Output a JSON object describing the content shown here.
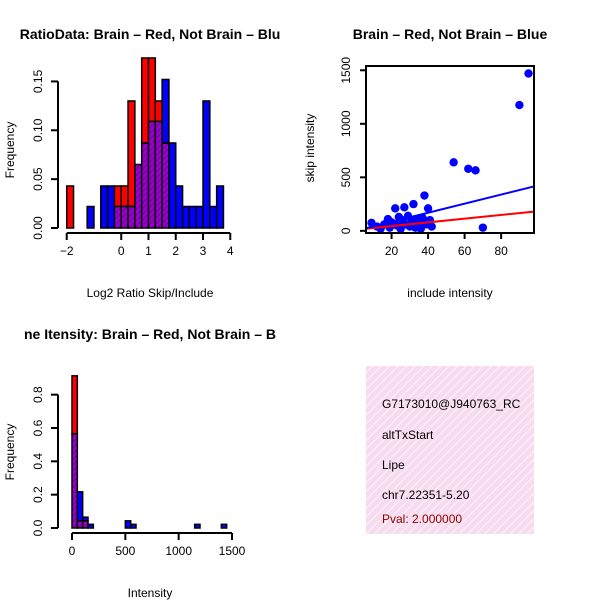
{
  "colors": {
    "brain": "#ff0000",
    "not_brain": "#0000ff",
    "overlap": "#9900cc",
    "info_bg": "#f7dcef",
    "pval": "#8b0000"
  },
  "chart_data": [
    {
      "type": "bar",
      "subtype": "histogram",
      "title": "RatioData: Brain – Red, Not Brain – Blu",
      "xlabel": "Log2 Ratio Skip/Include",
      "ylabel": "Frequency",
      "xlim": [
        -2.1,
        4.1
      ],
      "ylim": [
        0,
        0.175
      ],
      "xticks": [
        -2,
        0,
        1,
        2,
        3,
        4
      ],
      "xtick_labels": [
        "−2",
        "0",
        "1",
        "2",
        "3",
        "4"
      ],
      "yticks": [
        0,
        0.05,
        0.1,
        0.15
      ],
      "ytick_labels": [
        "0.00",
        "0.05",
        "0.10",
        "0.15"
      ],
      "series": [
        {
          "name": "Brain",
          "bins": [
            [
              -2.0,
              -1.75
            ],
            [
              -1.25,
              -1.0
            ],
            [
              -0.75,
              -0.5
            ],
            [
              -0.5,
              -0.25
            ],
            [
              -0.25,
              0
            ],
            [
              0,
              0.25
            ],
            [
              0.25,
              0.5
            ],
            [
              0.5,
              0.75
            ],
            [
              0.75,
              1.0
            ],
            [
              1.0,
              1.25
            ],
            [
              1.25,
              1.5
            ],
            [
              1.5,
              1.75
            ],
            [
              1.75,
              2.0
            ],
            [
              2.0,
              2.25
            ],
            [
              2.25,
              2.5
            ],
            [
              2.5,
              2.75
            ],
            [
              2.75,
              3.0
            ],
            [
              3.0,
              3.25
            ],
            [
              3.25,
              3.5
            ],
            [
              3.5,
              3.75
            ],
            [
              3.75,
              4.0
            ]
          ],
          "values": [
            0.043,
            0,
            0,
            0,
            0.043,
            0.043,
            0.13,
            0.065,
            0.174,
            0.174,
            0.13,
            0.087,
            0,
            0,
            0,
            0,
            0,
            0,
            0,
            0,
            0
          ]
        },
        {
          "name": "Not Brain",
          "bins": [
            [
              -2.0,
              -1.75
            ],
            [
              -1.25,
              -1.0
            ],
            [
              -0.75,
              -0.5
            ],
            [
              -0.5,
              -0.25
            ],
            [
              -0.25,
              0
            ],
            [
              0,
              0.25
            ],
            [
              0.25,
              0.5
            ],
            [
              0.5,
              0.75
            ],
            [
              0.75,
              1.0
            ],
            [
              1.0,
              1.25
            ],
            [
              1.25,
              1.5
            ],
            [
              1.5,
              1.75
            ],
            [
              1.75,
              2.0
            ],
            [
              2.0,
              2.25
            ],
            [
              2.25,
              2.5
            ],
            [
              2.5,
              2.75
            ],
            [
              2.75,
              3.0
            ],
            [
              3.0,
              3.25
            ],
            [
              3.25,
              3.5
            ],
            [
              3.5,
              3.75
            ],
            [
              3.75,
              4.0
            ]
          ],
          "values": [
            0,
            0.022,
            0.043,
            0.043,
            0.022,
            0.022,
            0.022,
            0.065,
            0.087,
            0.109,
            0.109,
            0.152,
            0.087,
            0.043,
            0.022,
            0.022,
            0.022,
            0.13,
            0.022,
            0.043,
            0
          ]
        }
      ]
    },
    {
      "type": "scatter",
      "title": "Brain – Red, Not Brain – Blue",
      "xlabel": "include intensity",
      "ylabel": "skip intensity",
      "xlim": [
        6,
        98
      ],
      "ylim": [
        -20,
        1540
      ],
      "xticks": [
        20,
        40,
        60,
        80
      ],
      "xtick_labels": [
        "20",
        "40",
        "60",
        "80"
      ],
      "yticks": [
        0,
        500,
        1000,
        1500
      ],
      "ytick_labels": [
        "0",
        "500",
        "1000",
        "1500"
      ],
      "points": [
        {
          "x": 9,
          "y": 75
        },
        {
          "x": 12,
          "y": 40
        },
        {
          "x": 14,
          "y": 20
        },
        {
          "x": 16,
          "y": 60
        },
        {
          "x": 18,
          "y": 110
        },
        {
          "x": 19,
          "y": 30
        },
        {
          "x": 20,
          "y": 80
        },
        {
          "x": 22,
          "y": 210
        },
        {
          "x": 23,
          "y": 50
        },
        {
          "x": 24,
          "y": 130
        },
        {
          "x": 25,
          "y": 20
        },
        {
          "x": 26,
          "y": 100
        },
        {
          "x": 27,
          "y": 220
        },
        {
          "x": 28,
          "y": 60
        },
        {
          "x": 29,
          "y": 140
        },
        {
          "x": 30,
          "y": 40
        },
        {
          "x": 31,
          "y": 90
        },
        {
          "x": 32,
          "y": 250
        },
        {
          "x": 33,
          "y": 30
        },
        {
          "x": 34,
          "y": 110
        },
        {
          "x": 35,
          "y": 70
        },
        {
          "x": 36,
          "y": 20
        },
        {
          "x": 37,
          "y": 120
        },
        {
          "x": 38,
          "y": 330
        },
        {
          "x": 39,
          "y": 60
        },
        {
          "x": 40,
          "y": 210
        },
        {
          "x": 41,
          "y": 100
        },
        {
          "x": 42,
          "y": 40
        },
        {
          "x": 54,
          "y": 640
        },
        {
          "x": 62,
          "y": 580
        },
        {
          "x": 66,
          "y": 565
        },
        {
          "x": 70,
          "y": 30
        },
        {
          "x": 90,
          "y": 1175
        },
        {
          "x": 95,
          "y": 1470
        }
      ],
      "fit_lines": [
        {
          "name": "Brain",
          "x": [
            6,
            98
          ],
          "y": [
            20,
            180
          ]
        },
        {
          "name": "Not Brain",
          "x": [
            6,
            98
          ],
          "y": [
            25,
            415
          ]
        }
      ]
    },
    {
      "type": "bar",
      "subtype": "histogram",
      "title": "ne Itensity: Brain – Red, Not Brain – B",
      "xlabel": "Intensity",
      "ylabel": "Frequency",
      "xlim": [
        -60,
        1560
      ],
      "ylim": [
        0,
        0.96
      ],
      "xticks": [
        0,
        500,
        1000,
        1500
      ],
      "xtick_labels": [
        "0",
        "500",
        "1000",
        "1500"
      ],
      "yticks": [
        0,
        0.2,
        0.4,
        0.6,
        0.8
      ],
      "ytick_labels": [
        "0.0",
        "0.2",
        "0.4",
        "0.6",
        "0.8"
      ],
      "bin_edges": [
        0,
        50,
        100,
        150,
        200,
        250,
        300,
        350,
        400,
        450,
        500,
        550,
        600,
        650,
        700,
        750,
        800,
        850,
        900,
        950,
        1000,
        1050,
        1100,
        1150,
        1200,
        1250,
        1300,
        1350,
        1400,
        1450,
        1500
      ],
      "series": [
        {
          "name": "Brain",
          "values": [
            0.913,
            0.043,
            0.043,
            0,
            0,
            0,
            0,
            0,
            0,
            0,
            0,
            0,
            0,
            0,
            0,
            0,
            0,
            0,
            0,
            0,
            0,
            0,
            0,
            0,
            0,
            0,
            0,
            0,
            0,
            0
          ]
        },
        {
          "name": "Not Brain",
          "values": [
            0.565,
            0.217,
            0.065,
            0.022,
            0,
            0,
            0,
            0,
            0,
            0,
            0.043,
            0.022,
            0,
            0,
            0,
            0,
            0,
            0,
            0,
            0,
            0,
            0,
            0,
            0.022,
            0,
            0,
            0,
            0,
            0.022,
            0
          ]
        }
      ]
    }
  ],
  "info_panel": {
    "id": "G7173010@J940763_RC",
    "event": "altTxStart",
    "gene": "Lipe",
    "location": "chr7.22351-5.20",
    "pval": "Pval: 2.000000"
  }
}
